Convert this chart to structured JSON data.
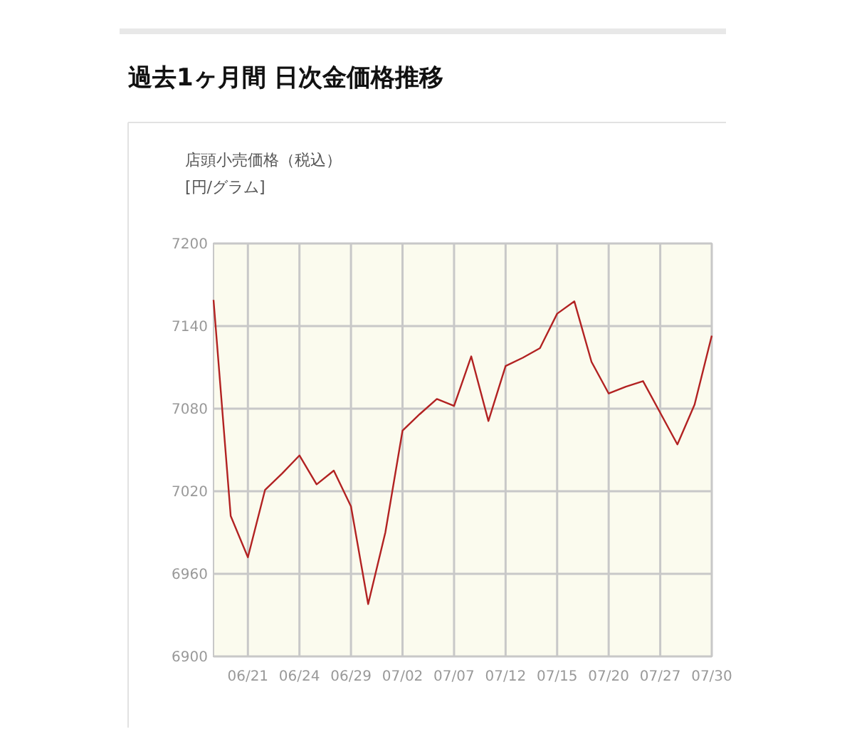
{
  "chart_data": {
    "type": "line",
    "title": "過去1ヶ月間 日次金価格推移",
    "subtitle": "店頭小売価格（税込）",
    "ylabel": "[円/グラム]",
    "categories": [
      null,
      null,
      "06/21",
      null,
      null,
      "06/24",
      null,
      null,
      "06/29",
      null,
      null,
      "07/02",
      null,
      null,
      "07/07",
      null,
      null,
      "07/12",
      null,
      null,
      "07/15",
      null,
      null,
      "07/20",
      null,
      null,
      "07/27",
      null,
      null,
      "07/30"
    ],
    "series": [
      {
        "color": "#b22222",
        "values": [
          7159,
          7002,
          6972,
          7021,
          7033,
          7046,
          7025,
          7035,
          7009,
          6938,
          6990,
          7064,
          7076,
          7087,
          7082,
          7118,
          7071,
          7111,
          7117,
          7124,
          7149,
          7158,
          7114,
          7091,
          7096,
          7100,
          7077,
          7054,
          7083,
          7133
        ]
      }
    ],
    "ylim": [
      6900,
      7200
    ],
    "yticks": [
      6900,
      6960,
      7020,
      7080,
      7140,
      7200
    ],
    "grid": true,
    "marker": "none",
    "line_style": "solid"
  }
}
